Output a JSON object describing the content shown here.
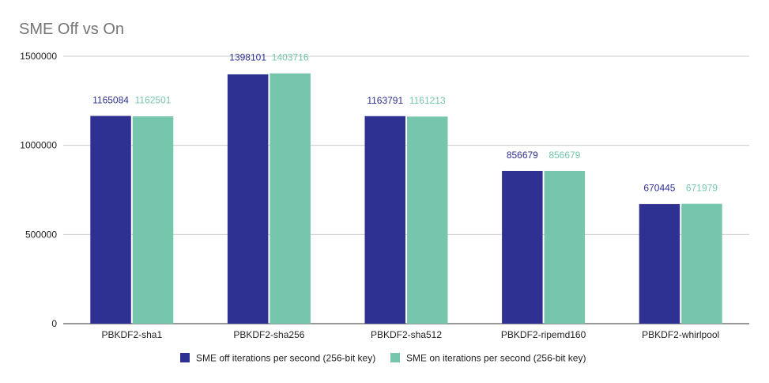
{
  "chart_data": {
    "type": "bar",
    "title": "SME Off vs On",
    "categories": [
      "PBKDF2-sha1",
      "PBKDF2-sha256",
      "PBKDF2-sha512",
      "PBKDF2-ripemd160",
      "PBKDF2-whirlpool"
    ],
    "series": [
      {
        "name": "SME off iterations per second (256-bit key)",
        "color": "#2e3192",
        "values": [
          1165084,
          1398101,
          1163791,
          856679,
          670445
        ]
      },
      {
        "name": "SME on iterations per second (256-bit key)",
        "color": "#76c5ad",
        "values": [
          1162501,
          1403716,
          1161213,
          856679,
          671979
        ]
      }
    ],
    "yticks": [
      "0",
      "500000",
      "1000000",
      "1500000"
    ],
    "ylim": [
      0,
      1500000
    ],
    "grid": true,
    "legend_position": "bottom",
    "xlabel": "",
    "ylabel": ""
  }
}
